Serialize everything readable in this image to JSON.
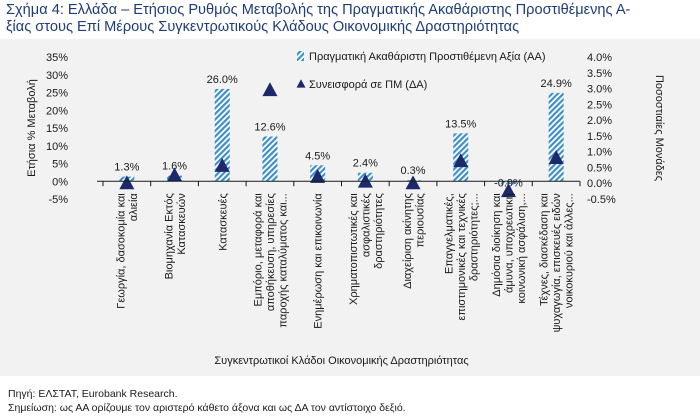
{
  "title_line1": "Σχήμα 4: Ελλάδα – Ετήσιος Ρυθμός Μεταβολής της Πραγματικής Ακαθάριστης Προστιθέμενης Α-",
  "title_line2": "ξίας στους Επί Μέρους Συγκεντρωτικούς Κλάδους Οικονομικής Δραστηριότητας",
  "footer_source": "Πηγή: ΕΛΣΤΑΤ, Eurobank Research.",
  "footer_note": "Σημείωση: ως ΑΑ ορίζουμε τον αριστερό κάθετο άξονα και ως ΔΑ τον αντίστοιχο δεξιό.",
  "colors": {
    "bar": "#3e8fc8",
    "marker": "#1c2a6b",
    "title": "#1d3c78"
  },
  "chart_data": {
    "type": "bar",
    "xlabel": "Συγκεντρωτικοί Κλάδοι Οικονομικής Δραστηριότητας",
    "ylabel_left": "Ετήσια % Μεταβολή",
    "ylabel_right": "Ποσοστιαίες Μονάδες",
    "ylim_left": [
      -5,
      35
    ],
    "ylim_right": [
      -0.5,
      4.0
    ],
    "yticks_left": [
      "-5%",
      "0%",
      "5%",
      "10%",
      "15%",
      "20%",
      "25%",
      "30%",
      "35%"
    ],
    "yticks_right": [
      "-0.5%",
      "0.0%",
      "0.5%",
      "1.0%",
      "1.5%",
      "2.0%",
      "2.5%",
      "3.0%",
      "3.5%",
      "4.0%"
    ],
    "legend_position": "top-right",
    "categories": [
      [
        "Γεωργία, δασοκομία και",
        "αλιεία"
      ],
      [
        "Βιομηχανία Εκτός",
        "Κατασκευών"
      ],
      [
        "Κατασκευές"
      ],
      [
        "Εμπόριο, μεταφορά και",
        "αποθήκευση, υπηρεσίες",
        "παροχής καταλύματος και..."
      ],
      [
        "Ενημέρωση και επικοινωνία"
      ],
      [
        "Χρηματοπιστωτικές και",
        "ασφαλιστικές",
        "δραστηριότητες"
      ],
      [
        "Διαχείριση ακίνητης",
        "περιουσίας"
      ],
      [
        "Επαγγελματικές,",
        "επιστημονικές και τεχνικές",
        "δραστηριότητες;..."
      ],
      [
        "Δημόσια διοίκηση και",
        "άμυνα, υποχρεωτική",
        "κοινωνική ασφάλιση,..."
      ],
      [
        "Τέχνες, διασκέδαση και",
        "ψυχαγωγία, επισκευές ειδών",
        "νοικοκυριού και άλλες..."
      ]
    ],
    "series": [
      {
        "name": "Πραγματική Ακαθάριστη Προστιθέμενη Αξία (ΑΑ)",
        "axis": "left",
        "kind": "bar",
        "values": [
          1.3,
          1.6,
          26.0,
          12.6,
          4.5,
          2.4,
          0.3,
          13.5,
          -0.9,
          24.9
        ],
        "labels": [
          "1.3%",
          "1.6%",
          "26.0%",
          "12.6%",
          "4.5%",
          "2.4%",
          "0.3%",
          "13.5%",
          "-0.9%",
          "24.9%"
        ]
      },
      {
        "name": "Συνεισφορά σε ΠΜ (ΔΑ)",
        "axis": "right",
        "kind": "marker",
        "values": [
          0.0,
          0.25,
          0.55,
          2.95,
          0.2,
          0.05,
          0.0,
          0.7,
          -0.25,
          0.8
        ]
      }
    ]
  }
}
